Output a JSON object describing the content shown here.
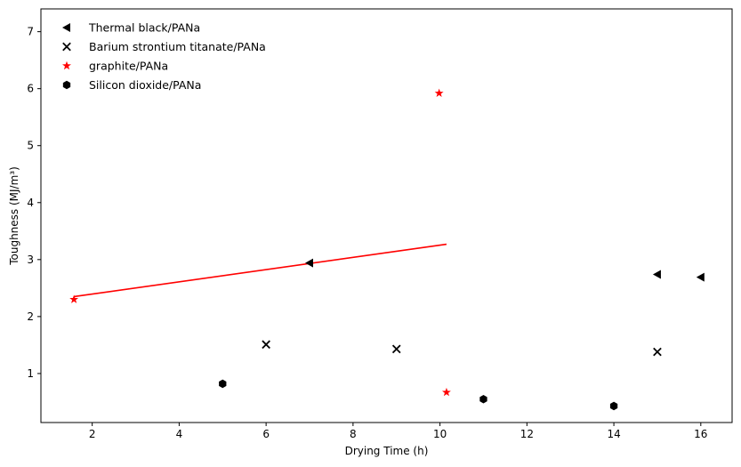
{
  "chart_data": {
    "type": "scatter",
    "title": "",
    "xlabel": "Drying Time (h)",
    "ylabel": "Toughness (MJ/m³)",
    "xlim": [
      0.82,
      16.72
    ],
    "ylim": [
      0.14,
      7.4
    ],
    "xticks": [
      2,
      4,
      6,
      8,
      10,
      12,
      14,
      16
    ],
    "yticks": [
      1,
      2,
      3,
      4,
      5,
      6,
      7
    ],
    "grid": false,
    "legend_position": "top-left",
    "series": [
      {
        "name": "Thermal black/PANa",
        "marker": "triangle-left",
        "color": "#000000",
        "points": [
          [
            7,
            2.94
          ],
          [
            15,
            2.74
          ],
          [
            16,
            2.69
          ]
        ]
      },
      {
        "name": "Barium strontium titanate/PANa",
        "marker": "x",
        "color": "#000000",
        "points": [
          [
            6,
            1.51
          ],
          [
            9,
            1.43
          ],
          [
            15,
            1.38
          ]
        ]
      },
      {
        "name": "graphite/PANa",
        "marker": "star",
        "color": "#ff0000",
        "points": [
          [
            1.58,
            2.3
          ],
          [
            9.98,
            5.92
          ],
          [
            10.15,
            0.67
          ]
        ]
      },
      {
        "name": "Silicon dioxide/PANa",
        "marker": "hexagon",
        "color": "#000000",
        "points": [
          [
            5,
            0.82
          ],
          [
            11,
            0.55
          ],
          [
            14,
            0.43
          ]
        ]
      }
    ],
    "trend_line": {
      "color": "#ff0000",
      "points": [
        [
          1.58,
          2.35
        ],
        [
          10.15,
          3.27
        ]
      ]
    }
  }
}
